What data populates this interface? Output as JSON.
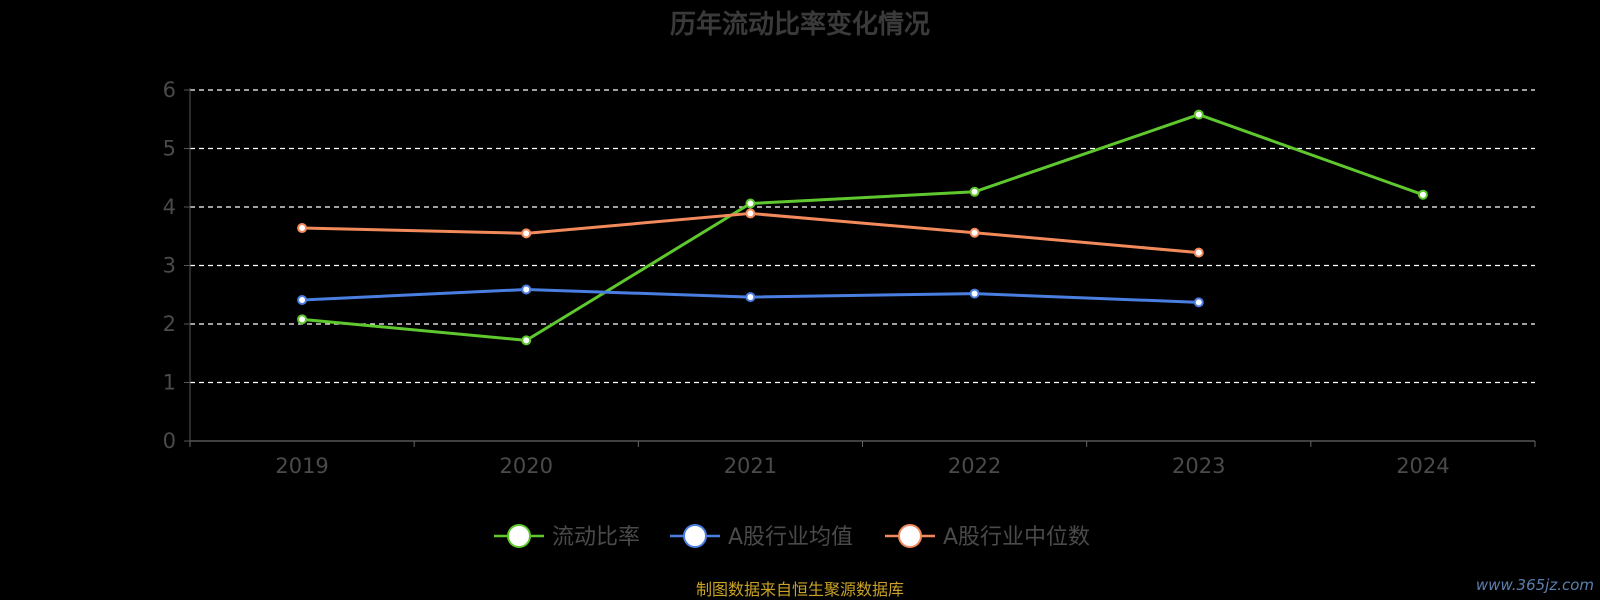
{
  "chart_data": {
    "type": "line",
    "title": "历年流动比率变化情况",
    "categories": [
      "2019",
      "2020",
      "2021",
      "2022",
      "2023",
      "2024"
    ],
    "ylim": [
      0,
      6
    ],
    "yticks": [
      "0",
      "1",
      "2",
      "3",
      "4",
      "5",
      "6"
    ],
    "grid": true,
    "legend_position": "bottom",
    "series": [
      {
        "name": "流动比率",
        "color": "#5ec82e",
        "values": [
          2.08,
          1.72,
          4.06,
          4.26,
          5.58,
          4.21
        ]
      },
      {
        "name": "A股行业均值",
        "color": "#4a7ee0",
        "values": [
          2.41,
          2.59,
          2.46,
          2.52,
          2.37,
          null
        ]
      },
      {
        "name": "A股行业中位数",
        "color": "#f28a5c",
        "values": [
          3.64,
          3.55,
          3.89,
          3.56,
          3.22,
          null
        ]
      }
    ]
  },
  "footer": {
    "source": "制图数据来自恒生聚源数据库",
    "watermark": "www.365jz.com"
  }
}
